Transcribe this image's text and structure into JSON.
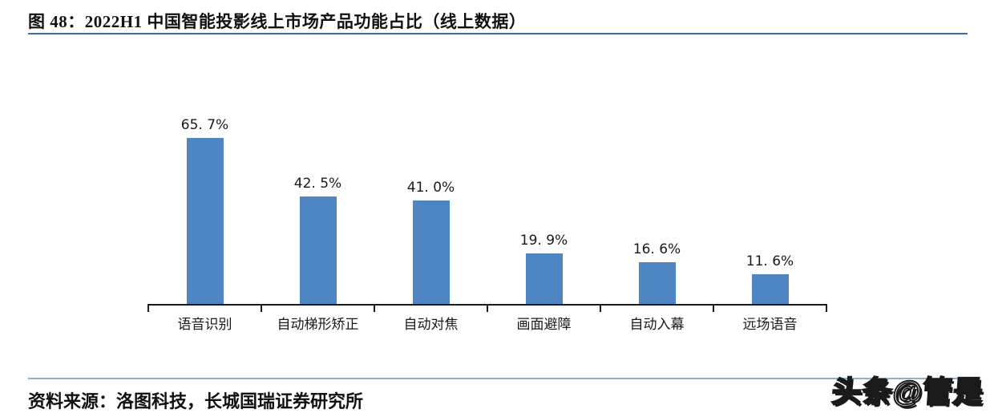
{
  "page": {
    "title": "图 48：2022H1 中国智能投影线上市场产品功能占比（线上数据）",
    "source_note": "资料来源：洛图科技，长城国瑞证券研究所",
    "watermark": "头条@管是"
  },
  "colors": {
    "bar": "#4e86c4",
    "header_rule": "#3b6ca8",
    "footer_rule": "#8fafd0",
    "axis": "#1a1a1a",
    "text": "#111111",
    "background": "#ffffff"
  },
  "chart_data": {
    "type": "bar",
    "title": "2022H1 中国智能投影线上市场产品功能占比（线上数据）",
    "categories": [
      "语音识别",
      "自动梯形矫正",
      "自动对焦",
      "画面避障",
      "自动入幕",
      "远场语音"
    ],
    "values": [
      65.7,
      42.5,
      41.0,
      19.9,
      16.6,
      11.6
    ],
    "data_labels": [
      "65. 7%",
      "42. 5%",
      "41. 0%",
      "19. 9%",
      "16. 6%",
      "11. 6%"
    ],
    "xlabel": "",
    "ylabel": "",
    "ylim": [
      0,
      70
    ],
    "grid": false,
    "legend": null,
    "y_axis_shown": false,
    "data_labels_position": "above-bar"
  }
}
